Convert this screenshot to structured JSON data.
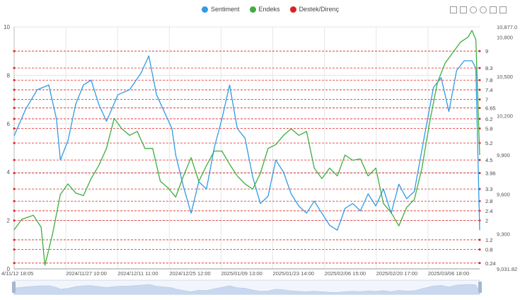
{
  "legend": {
    "sentiment": "Sentiment",
    "endeks": "Endeks",
    "destek": "Destek/Direnç"
  },
  "toolbox": [
    "zoom-icon",
    "zoom-reset-icon",
    "restore-icon",
    "refresh-icon",
    "data-view-icon",
    "save-icon"
  ],
  "colors": {
    "sentiment": "#2f9be6",
    "endeks": "#3fae3f",
    "levels": "#e02020"
  },
  "chart_data": {
    "type": "line",
    "x_labels": [
      "4/11/12 18:05",
      "2024/11/27 10:00",
      "2024/12/11 11:00",
      "2024/12/25 12:00",
      "2025/01/09 13:00",
      "2025/01/23 14:00",
      "2025/02/06 15:00",
      "2025/02/20 17:00",
      "2025/03/06 18:00"
    ],
    "left_axis": {
      "min": 0,
      "max": 10,
      "ticks": [
        "0",
        "2",
        "4",
        "6",
        "8",
        "10"
      ]
    },
    "right_axis": {
      "min": 9031.82,
      "max": 10877.0,
      "ticks": [
        "10,877.0",
        "10,800",
        "10,500",
        "10,200",
        "9,900",
        "9,600",
        "9,300",
        "9,031.82"
      ]
    },
    "levels": [
      "9",
      "8.3",
      "7.8",
      "7.4",
      "7",
      "6.65",
      "6.2",
      "5.8",
      "5.2",
      "4.5",
      "3.96",
      "3.3",
      "2.8",
      "2.4",
      "2",
      "1.2",
      "0.8",
      "0.24"
    ],
    "level_values": [
      9,
      8.3,
      7.8,
      7.4,
      7,
      6.65,
      6.2,
      5.8,
      5.2,
      4.5,
      3.96,
      3.3,
      2.8,
      2.4,
      2,
      1.2,
      0.8,
      0.24
    ],
    "series": [
      {
        "name": "Sentiment",
        "axis": "left",
        "points": [
          [
            0,
            5.5
          ],
          [
            3,
            6.6
          ],
          [
            6,
            7.4
          ],
          [
            9,
            7.6
          ],
          [
            11,
            6.2
          ],
          [
            12,
            4.5
          ],
          [
            14,
            5.3
          ],
          [
            16,
            6.8
          ],
          [
            18,
            7.6
          ],
          [
            20,
            7.8
          ],
          [
            22,
            6.8
          ],
          [
            24,
            6.1
          ],
          [
            27,
            7.2
          ],
          [
            30,
            7.4
          ],
          [
            33,
            8.1
          ],
          [
            35,
            8.8
          ],
          [
            37,
            7.2
          ],
          [
            39,
            6.5
          ],
          [
            41,
            5.8
          ],
          [
            42,
            4.7
          ],
          [
            44,
            3.4
          ],
          [
            46,
            2.3
          ],
          [
            48,
            3.6
          ],
          [
            50,
            3.3
          ],
          [
            52,
            5.0
          ],
          [
            54,
            6.2
          ],
          [
            56,
            7.6
          ],
          [
            58,
            5.8
          ],
          [
            60,
            5.4
          ],
          [
            62,
            3.8
          ],
          [
            64,
            2.7
          ],
          [
            66,
            3.0
          ],
          [
            68,
            4.5
          ],
          [
            70,
            4.0
          ],
          [
            72,
            3.1
          ],
          [
            74,
            2.6
          ],
          [
            76,
            2.3
          ],
          [
            78,
            2.8
          ],
          [
            80,
            2.3
          ],
          [
            82,
            1.8
          ],
          [
            84,
            1.6
          ],
          [
            86,
            2.5
          ],
          [
            88,
            2.7
          ],
          [
            90,
            2.4
          ],
          [
            92,
            3.1
          ],
          [
            94,
            2.6
          ],
          [
            96,
            3.3
          ],
          [
            98,
            2.3
          ],
          [
            100,
            3.5
          ],
          [
            102,
            2.9
          ],
          [
            104,
            3.2
          ],
          [
            107,
            5.8
          ],
          [
            109,
            7.5
          ],
          [
            111,
            7.9
          ],
          [
            113,
            6.5
          ],
          [
            115,
            8.2
          ],
          [
            117,
            8.6
          ],
          [
            119,
            8.6
          ],
          [
            120,
            8.3
          ],
          [
            121,
            1.6
          ]
        ]
      },
      {
        "name": "Endeks",
        "axis": "right",
        "points": [
          [
            0,
            9330
          ],
          [
            2,
            9410
          ],
          [
            5,
            9440
          ],
          [
            7,
            9350
          ],
          [
            8,
            9060
          ],
          [
            10,
            9300
          ],
          [
            12,
            9600
          ],
          [
            14,
            9680
          ],
          [
            16,
            9610
          ],
          [
            18,
            9590
          ],
          [
            20,
            9720
          ],
          [
            22,
            9820
          ],
          [
            24,
            9950
          ],
          [
            26,
            10180
          ],
          [
            28,
            10100
          ],
          [
            30,
            10050
          ],
          [
            32,
            10080
          ],
          [
            34,
            9950
          ],
          [
            36,
            9950
          ],
          [
            38,
            9700
          ],
          [
            40,
            9650
          ],
          [
            42,
            9580
          ],
          [
            44,
            9740
          ],
          [
            46,
            9880
          ],
          [
            48,
            9700
          ],
          [
            50,
            9820
          ],
          [
            52,
            9930
          ],
          [
            54,
            9930
          ],
          [
            56,
            9830
          ],
          [
            58,
            9740
          ],
          [
            60,
            9680
          ],
          [
            62,
            9640
          ],
          [
            64,
            9760
          ],
          [
            66,
            9950
          ],
          [
            68,
            9980
          ],
          [
            70,
            10050
          ],
          [
            72,
            10100
          ],
          [
            74,
            10050
          ],
          [
            76,
            10080
          ],
          [
            78,
            9800
          ],
          [
            80,
            9720
          ],
          [
            82,
            9800
          ],
          [
            84,
            9740
          ],
          [
            86,
            9900
          ],
          [
            88,
            9860
          ],
          [
            90,
            9870
          ],
          [
            92,
            9740
          ],
          [
            94,
            9800
          ],
          [
            96,
            9530
          ],
          [
            98,
            9460
          ],
          [
            100,
            9360
          ],
          [
            102,
            9500
          ],
          [
            104,
            9560
          ],
          [
            106,
            9800
          ],
          [
            108,
            10150
          ],
          [
            110,
            10450
          ],
          [
            112,
            10600
          ],
          [
            114,
            10680
          ],
          [
            116,
            10760
          ],
          [
            118,
            10800
          ],
          [
            119,
            10850
          ],
          [
            120,
            10780
          ],
          [
            121,
            9900
          ]
        ]
      }
    ],
    "x_max": 121,
    "grid": true,
    "legend_position": "top-center",
    "data_zoom": true
  }
}
